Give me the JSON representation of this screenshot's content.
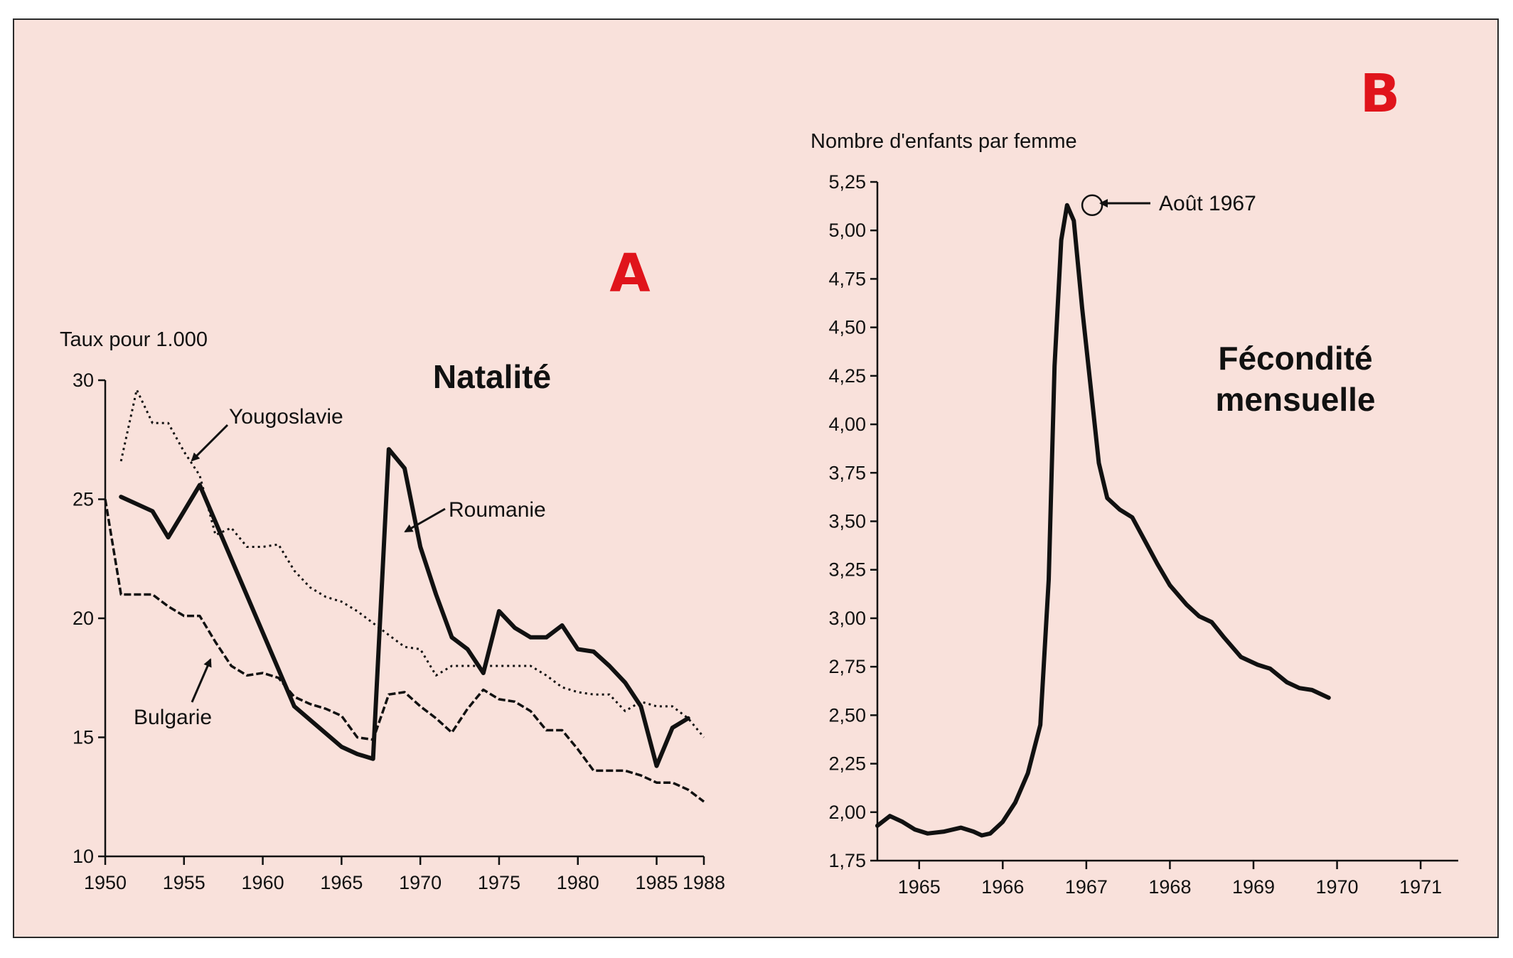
{
  "colors": {
    "panel_bg": "#f9e1db",
    "ink": "#111111",
    "letter": "#e0141b"
  },
  "chart_data": [
    {
      "type": "line",
      "panel_letter": "A",
      "title": "Natalité",
      "ylabel": "Taux pour 1.000",
      "xlim": [
        1950,
        1988
      ],
      "ylim": [
        10,
        30
      ],
      "x_ticks": [
        "1950",
        "1955",
        "1960",
        "1965",
        "1970",
        "1975",
        "1980",
        "1985",
        "1988"
      ],
      "y_ticks": [
        "10",
        "15",
        "20",
        "25",
        "30"
      ],
      "grid": false,
      "series": [
        {
          "name": "Yougoslavie",
          "style": "dotted",
          "points": [
            [
              1951,
              26.6
            ],
            [
              1952,
              29.6
            ],
            [
              1953,
              28.2
            ],
            [
              1954,
              28.2
            ],
            [
              1955,
              27.0
            ],
            [
              1956,
              26.0
            ],
            [
              1957,
              23.5
            ],
            [
              1958,
              23.8
            ],
            [
              1959,
              23.0
            ],
            [
              1960,
              23.0
            ],
            [
              1961,
              23.1
            ],
            [
              1962,
              22.0
            ],
            [
              1963,
              21.3
            ],
            [
              1964,
              20.9
            ],
            [
              1965,
              20.7
            ],
            [
              1966,
              20.3
            ],
            [
              1967,
              19.8
            ],
            [
              1968,
              19.3
            ],
            [
              1969,
              18.8
            ],
            [
              1970,
              18.7
            ],
            [
              1971,
              17.6
            ],
            [
              1972,
              18.0
            ],
            [
              1973,
              18.0
            ],
            [
              1974,
              18.0
            ],
            [
              1975,
              18.0
            ],
            [
              1976,
              18.0
            ],
            [
              1977,
              18.0
            ],
            [
              1978,
              17.6
            ],
            [
              1979,
              17.1
            ],
            [
              1980,
              16.9
            ],
            [
              1981,
              16.8
            ],
            [
              1982,
              16.8
            ],
            [
              1983,
              16.1
            ],
            [
              1984,
              16.5
            ],
            [
              1985,
              16.3
            ],
            [
              1986,
              16.3
            ],
            [
              1987,
              15.8
            ],
            [
              1988,
              15.0
            ]
          ]
        },
        {
          "name": "Roumanie",
          "style": "solid",
          "points": [
            [
              1951,
              25.1
            ],
            [
              1952,
              24.8
            ],
            [
              1953,
              24.5
            ],
            [
              1954,
              23.4
            ],
            [
              1955,
              24.5
            ],
            [
              1956,
              25.6
            ],
            [
              1962,
              16.3
            ],
            [
              1965,
              14.6
            ],
            [
              1966,
              14.3
            ],
            [
              1967,
              14.1
            ],
            [
              1968,
              27.1
            ],
            [
              1969,
              26.3
            ],
            [
              1970,
              23.0
            ],
            [
              1971,
              21.0
            ],
            [
              1972,
              19.2
            ],
            [
              1973,
              18.7
            ],
            [
              1974,
              17.7
            ],
            [
              1975,
              20.3
            ],
            [
              1976,
              19.6
            ],
            [
              1977,
              19.2
            ],
            [
              1978,
              19.2
            ],
            [
              1979,
              19.7
            ],
            [
              1980,
              18.7
            ],
            [
              1981,
              18.6
            ],
            [
              1982,
              18.0
            ],
            [
              1983,
              17.3
            ],
            [
              1984,
              16.3
            ],
            [
              1985,
              13.8
            ],
            [
              1986,
              15.4
            ],
            [
              1987,
              15.8
            ]
          ]
        },
        {
          "name": "Bulgarie",
          "style": "dashed",
          "points": [
            [
              1950,
              25.0
            ],
            [
              1951,
              21.0
            ],
            [
              1952,
              21.0
            ],
            [
              1953,
              21.0
            ],
            [
              1954,
              20.5
            ],
            [
              1955,
              20.1
            ],
            [
              1956,
              20.1
            ],
            [
              1957,
              19.0
            ],
            [
              1958,
              18.0
            ],
            [
              1959,
              17.6
            ],
            [
              1960,
              17.7
            ],
            [
              1961,
              17.5
            ],
            [
              1962,
              16.7
            ],
            [
              1963,
              16.4
            ],
            [
              1964,
              16.2
            ],
            [
              1965,
              15.9
            ],
            [
              1966,
              15.0
            ],
            [
              1967,
              14.9
            ],
            [
              1968,
              16.8
            ],
            [
              1969,
              16.9
            ],
            [
              1970,
              16.3
            ],
            [
              1971,
              15.8
            ],
            [
              1972,
              15.2
            ],
            [
              1973,
              16.2
            ],
            [
              1974,
              17.0
            ],
            [
              1975,
              16.6
            ],
            [
              1976,
              16.5
            ],
            [
              1977,
              16.1
            ],
            [
              1978,
              15.3
            ],
            [
              1979,
              15.3
            ],
            [
              1980,
              14.5
            ],
            [
              1981,
              13.6
            ],
            [
              1982,
              13.6
            ],
            [
              1983,
              13.6
            ],
            [
              1984,
              13.4
            ],
            [
              1985,
              13.1
            ],
            [
              1986,
              13.1
            ],
            [
              1987,
              12.8
            ],
            [
              1988,
              12.3
            ]
          ]
        }
      ]
    },
    {
      "type": "line",
      "panel_letter": "B",
      "title_line1": "Fécondité",
      "title_line2": "mensuelle",
      "ylabel": "Nombre d'enfants par femme",
      "xlim": [
        1964.5,
        1971.45
      ],
      "ylim": [
        1.75,
        5.25
      ],
      "x_ticks": [
        "1965",
        "1966",
        "1967",
        "1968",
        "1969",
        "1970",
        "1971"
      ],
      "y_ticks": [
        "1,75",
        "2,00",
        "2,25",
        "2,50",
        "2,75",
        "3,00",
        "3,25",
        "3,50",
        "3,75",
        "4,00",
        "4,25",
        "4,50",
        "4,75",
        "5,00",
        "5,25"
      ],
      "grid": false,
      "annotation": {
        "text": "Août 1967",
        "x": 1967.07,
        "y": 5.13
      },
      "series": [
        {
          "name": "",
          "style": "solid",
          "points": [
            [
              1964.5,
              1.93
            ],
            [
              1964.65,
              1.98
            ],
            [
              1964.8,
              1.95
            ],
            [
              1964.95,
              1.91
            ],
            [
              1965.1,
              1.89
            ],
            [
              1965.3,
              1.9
            ],
            [
              1965.5,
              1.92
            ],
            [
              1965.65,
              1.9
            ],
            [
              1965.75,
              1.88
            ],
            [
              1965.85,
              1.89
            ],
            [
              1966.0,
              1.95
            ],
            [
              1966.15,
              2.05
            ],
            [
              1966.3,
              2.2
            ],
            [
              1966.45,
              2.45
            ],
            [
              1966.55,
              3.2
            ],
            [
              1966.62,
              4.3
            ],
            [
              1966.7,
              4.95
            ],
            [
              1966.77,
              5.13
            ],
            [
              1966.85,
              5.05
            ],
            [
              1966.95,
              4.6
            ],
            [
              1967.05,
              4.2
            ],
            [
              1967.15,
              3.8
            ],
            [
              1967.25,
              3.62
            ],
            [
              1967.4,
              3.56
            ],
            [
              1967.55,
              3.52
            ],
            [
              1967.7,
              3.4
            ],
            [
              1967.85,
              3.28
            ],
            [
              1968.0,
              3.17
            ],
            [
              1968.2,
              3.07
            ],
            [
              1968.35,
              3.01
            ],
            [
              1968.5,
              2.98
            ],
            [
              1968.65,
              2.9
            ],
            [
              1968.85,
              2.8
            ],
            [
              1969.05,
              2.76
            ],
            [
              1969.2,
              2.74
            ],
            [
              1969.4,
              2.67
            ],
            [
              1969.55,
              2.64
            ],
            [
              1969.7,
              2.63
            ],
            [
              1969.9,
              2.59
            ]
          ]
        }
      ]
    }
  ]
}
